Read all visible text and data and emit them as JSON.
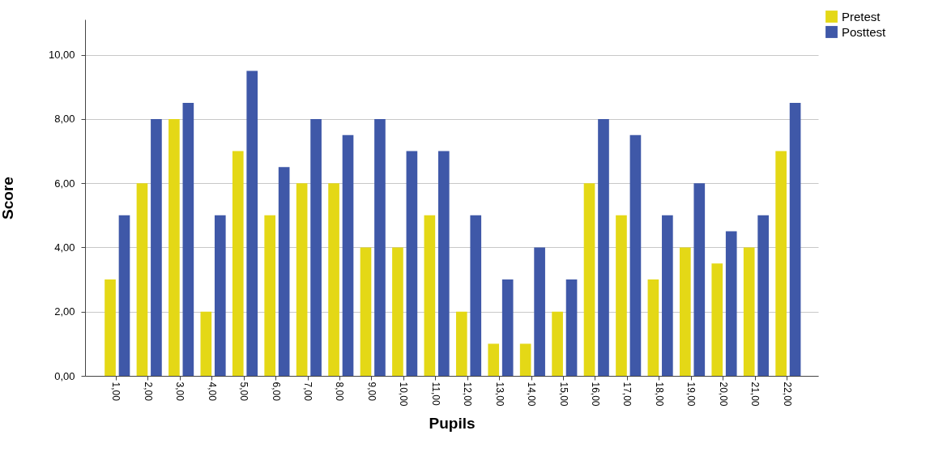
{
  "chart_data": {
    "type": "bar",
    "xlabel": "Pupils",
    "ylabel": "Score",
    "categories": [
      "1,00",
      "2,00",
      "3,00",
      "4,00",
      "5,00",
      "6,00",
      "7,00",
      "8,00",
      "9,00",
      "10,00",
      "11,00",
      "12,00",
      "13,00",
      "14,00",
      "15,00",
      "16,00",
      "17,00",
      "18,00",
      "19,00",
      "20,00",
      "21,00",
      "22,00"
    ],
    "series": [
      {
        "name": "Pretest",
        "color": "#e4d816",
        "values": [
          3,
          6,
          8,
          2,
          7,
          5,
          6,
          6,
          4,
          4,
          5,
          2,
          1,
          1,
          2,
          6,
          5,
          3,
          4,
          3.5,
          4,
          7
        ]
      },
      {
        "name": "Posttest",
        "color": "#3f58a8",
        "values": [
          5,
          8,
          8.5,
          5,
          9.5,
          6.5,
          8,
          7.5,
          8,
          7,
          7,
          5,
          3,
          4,
          3,
          8,
          7.5,
          5,
          6,
          4.5,
          5,
          8.5
        ]
      }
    ],
    "ylim": [
      0,
      11.1
    ],
    "yticks": [
      {
        "value": 0,
        "label": "0,00"
      },
      {
        "value": 2,
        "label": "2,00"
      },
      {
        "value": 4,
        "label": "4,00"
      },
      {
        "value": 6,
        "label": "6,00"
      },
      {
        "value": 8,
        "label": "8,00"
      },
      {
        "value": 10,
        "label": "10,00"
      }
    ],
    "grid": "y",
    "legend": "top right"
  }
}
